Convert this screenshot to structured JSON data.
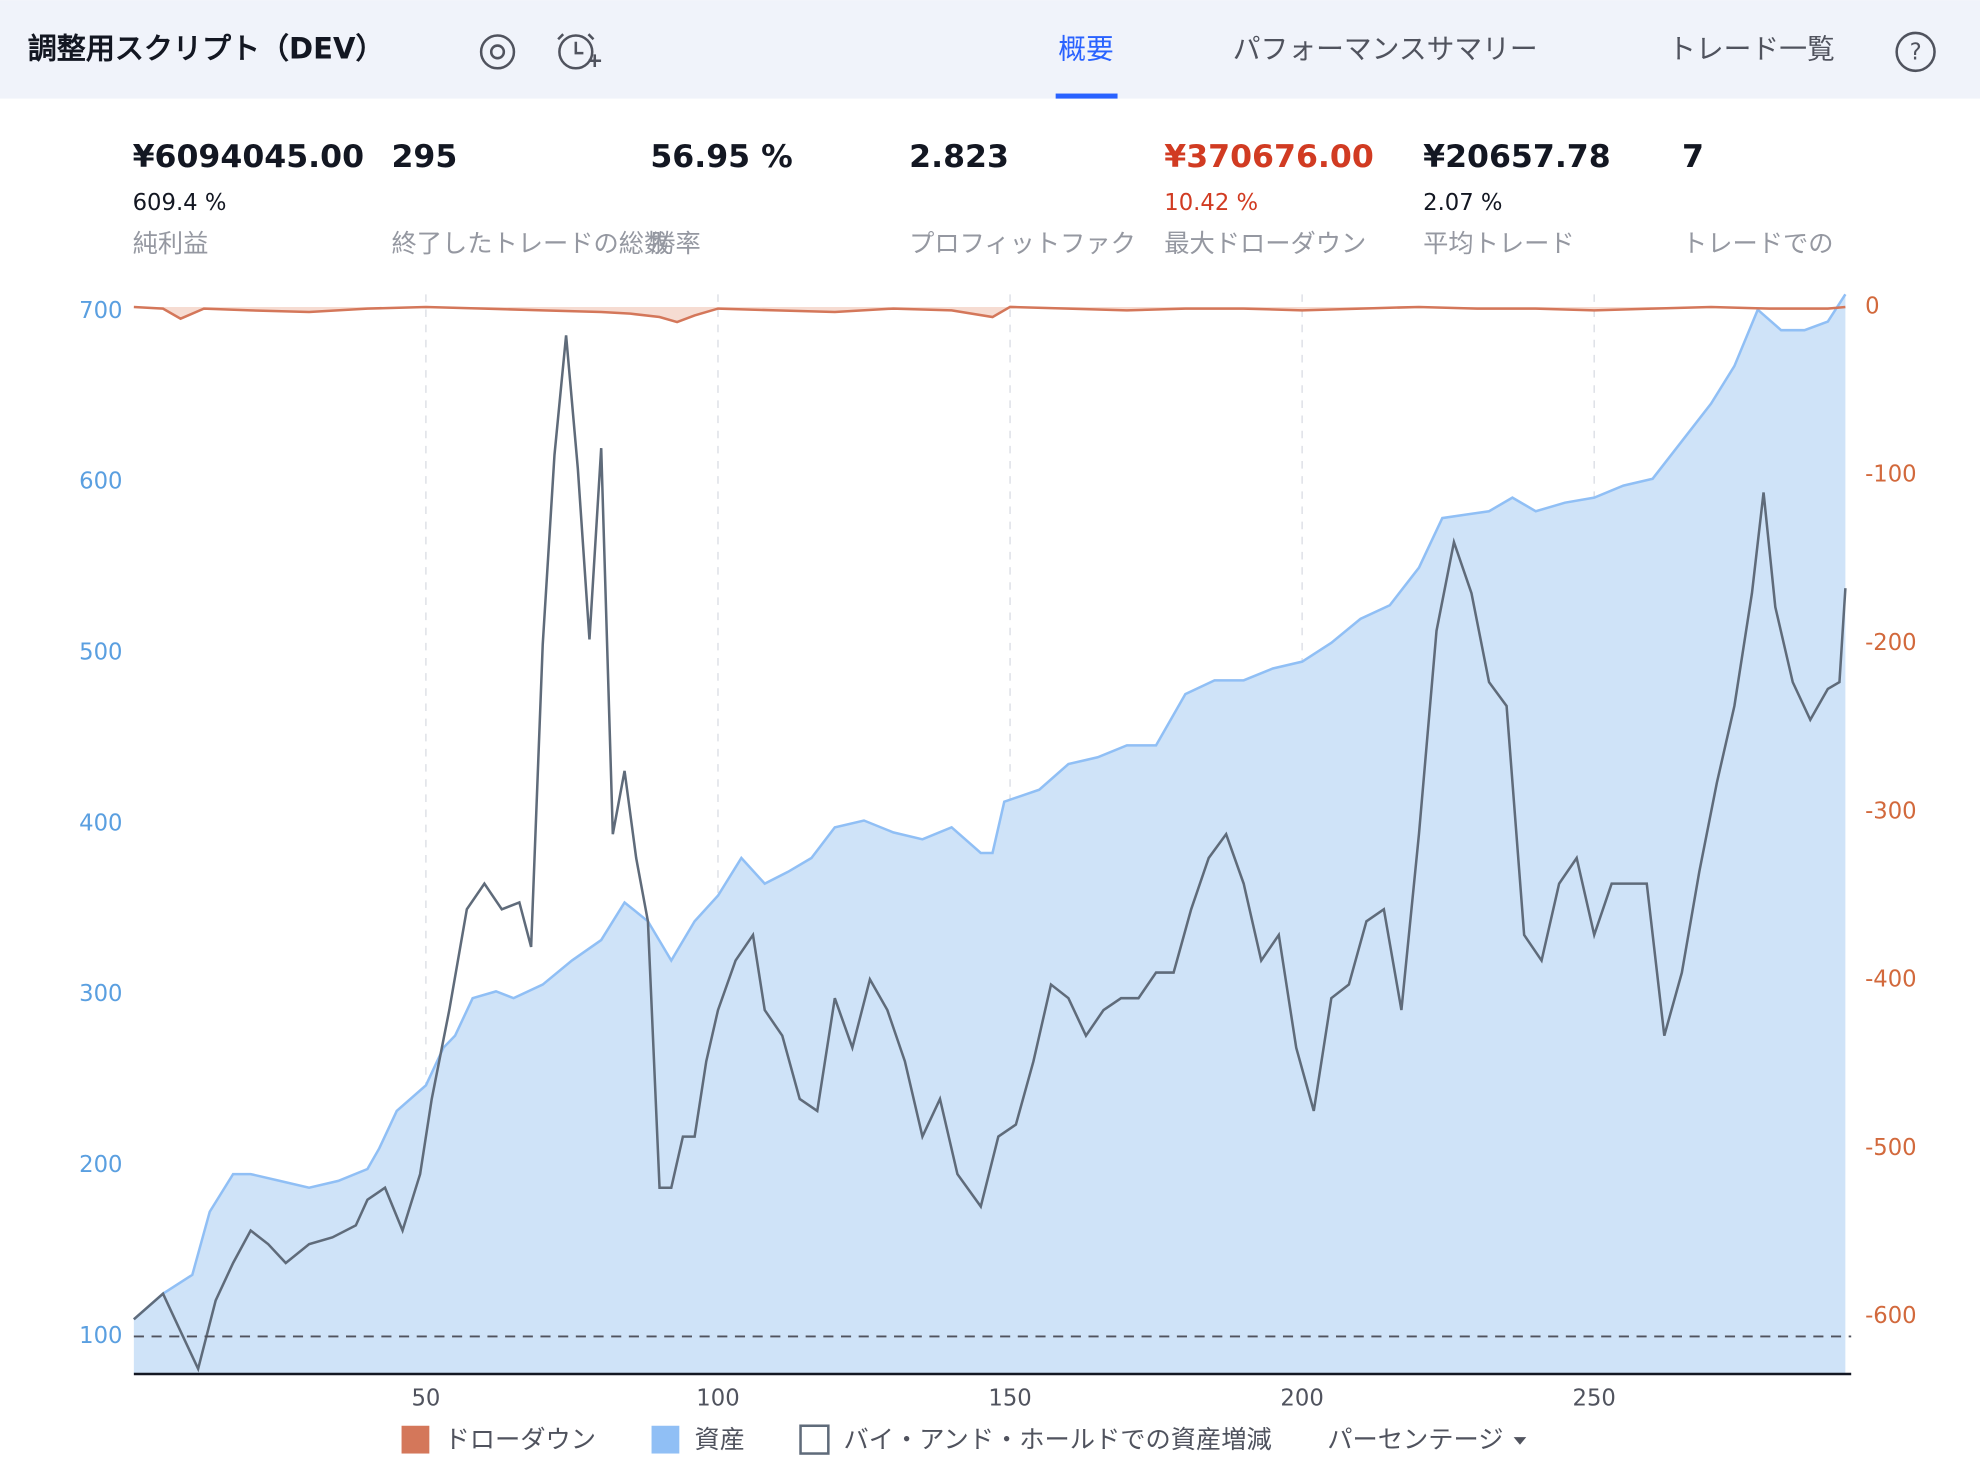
{
  "header": {
    "title": "調整用スクリプト（DEV）",
    "tabs": [
      "概要",
      "パフォーマンスサマリー",
      "トレード一覧"
    ],
    "help": "?"
  },
  "stats": [
    {
      "value": "¥6094045.00",
      "sub": "609.4 %",
      "label": "純利益"
    },
    {
      "value": "295",
      "label": "終了したトレードの総数"
    },
    {
      "value": "56.95 %",
      "label": "勝率"
    },
    {
      "value": "2.823",
      "label": "プロフィットファク"
    },
    {
      "value": "¥370676.00",
      "sub": "10.42 %",
      "label": "最大ドローダウン",
      "color": "#d13b22"
    },
    {
      "value": "¥20657.78",
      "sub": "2.07 %",
      "label": "平均トレード"
    },
    {
      "value": "7",
      "label": "トレードでの"
    }
  ],
  "chart_data": {
    "type": "line",
    "xlim": [
      0,
      294
    ],
    "xticks": [
      50,
      100,
      150,
      200,
      250
    ],
    "ylim": [
      78,
      710
    ],
    "yticks": [
      100,
      200,
      300,
      400,
      500,
      600,
      700
    ],
    "y2lim": [
      -634,
      7.5
    ],
    "y2ticks": [
      0,
      -100,
      -200,
      -300,
      -400,
      -500,
      -600
    ],
    "reference_line": 100,
    "legend_extra": "パーセンテージ",
    "series": [
      {
        "name": "ドローダウン",
        "kind": "area",
        "axis": "y2",
        "color": "#d4775a",
        "fill": "#f6dcd2",
        "x": [
          0,
          5,
          8,
          12,
          20,
          30,
          40,
          50,
          60,
          70,
          80,
          85,
          90,
          93,
          96,
          100,
          110,
          120,
          130,
          140,
          147,
          150,
          160,
          170,
          180,
          190,
          200,
          210,
          220,
          230,
          240,
          250,
          260,
          270,
          280,
          290,
          293
        ],
        "values": [
          0,
          -1,
          -7,
          -1,
          -2,
          -3,
          -1,
          0,
          -1,
          -2,
          -3,
          -4,
          -6,
          -9,
          -5,
          -1,
          -2,
          -3,
          -1,
          -2,
          -6,
          0,
          -1,
          -2,
          -1,
          -1,
          -2,
          -1,
          0,
          -1,
          -1,
          -2,
          -1,
          0,
          -1,
          -1,
          0
        ]
      },
      {
        "name": "資産",
        "kind": "area",
        "axis": "y",
        "color": "#90bff5",
        "fill": "#cfe3f8",
        "x": [
          0,
          5,
          10,
          13,
          17,
          20,
          25,
          30,
          35,
          40,
          42,
          45,
          50,
          53,
          55,
          58,
          62,
          65,
          70,
          75,
          80,
          84,
          88,
          92,
          96,
          100,
          104,
          108,
          112,
          116,
          120,
          125,
          130,
          135,
          140,
          145,
          147,
          149,
          155,
          160,
          165,
          170,
          175,
          180,
          185,
          190,
          195,
          200,
          205,
          210,
          215,
          220,
          224,
          228,
          232,
          236,
          240,
          245,
          250,
          255,
          260,
          265,
          270,
          274,
          278,
          282,
          286,
          290,
          293
        ],
        "values": [
          110,
          125,
          136,
          173,
          195,
          195,
          191,
          187,
          191,
          198,
          210,
          232,
          247,
          269,
          276,
          298,
          302,
          298,
          306,
          320,
          332,
          354,
          343,
          320,
          343,
          358,
          380,
          365,
          372,
          380,
          398,
          402,
          395,
          391,
          398,
          383,
          383,
          413,
          420,
          435,
          439,
          446,
          446,
          476,
          484,
          484,
          491,
          495,
          506,
          520,
          528,
          550,
          579,
          581,
          583,
          591,
          583,
          588,
          591,
          598,
          602,
          624,
          646,
          668,
          701,
          689,
          689,
          694,
          710
        ]
      },
      {
        "name": "バイ・アンド・ホールドでの資産増減",
        "kind": "line",
        "axis": "y",
        "color": "#5f6b7a",
        "x": [
          0,
          5,
          8,
          11,
          14,
          17,
          20,
          23,
          26,
          30,
          34,
          38,
          40,
          43,
          46,
          49,
          51,
          54,
          57,
          60,
          63,
          66,
          68,
          70,
          72,
          74,
          76,
          78,
          80,
          82,
          84,
          86,
          88,
          90,
          92,
          94,
          96,
          98,
          100,
          103,
          106,
          108,
          111,
          114,
          117,
          120,
          123,
          126,
          129,
          132,
          135,
          138,
          141,
          145,
          148,
          151,
          154,
          157,
          160,
          163,
          166,
          169,
          172,
          175,
          178,
          181,
          184,
          187,
          190,
          193,
          196,
          199,
          202,
          205,
          208,
          211,
          214,
          217,
          220,
          223,
          226,
          229,
          232,
          235,
          238,
          241,
          244,
          247,
          250,
          253,
          256,
          259,
          262,
          265,
          268,
          271,
          274,
          277,
          279,
          281,
          284,
          287,
          290,
          292,
          293
        ],
        "values": [
          110,
          125,
          103,
          81,
          121,
          143,
          162,
          154,
          143,
          154,
          158,
          165,
          180,
          187,
          162,
          195,
          239,
          291,
          350,
          365,
          350,
          354,
          328,
          505,
          616,
          686,
          608,
          508,
          620,
          394,
          431,
          380,
          343,
          187,
          187,
          217,
          217,
          261,
          291,
          320,
          335,
          291,
          276,
          239,
          232,
          298,
          269,
          309,
          291,
          261,
          217,
          239,
          195,
          176,
          217,
          224,
          261,
          306,
          298,
          276,
          291,
          298,
          298,
          313,
          313,
          350,
          380,
          394,
          365,
          320,
          335,
          269,
          232,
          298,
          306,
          343,
          350,
          291,
          394,
          513,
          565,
          535,
          483,
          469,
          335,
          320,
          365,
          380,
          335,
          365,
          365,
          365,
          276,
          313,
          372,
          424,
          469,
          535,
          594,
          527,
          483,
          461,
          479,
          483,
          538
        ]
      }
    ]
  }
}
